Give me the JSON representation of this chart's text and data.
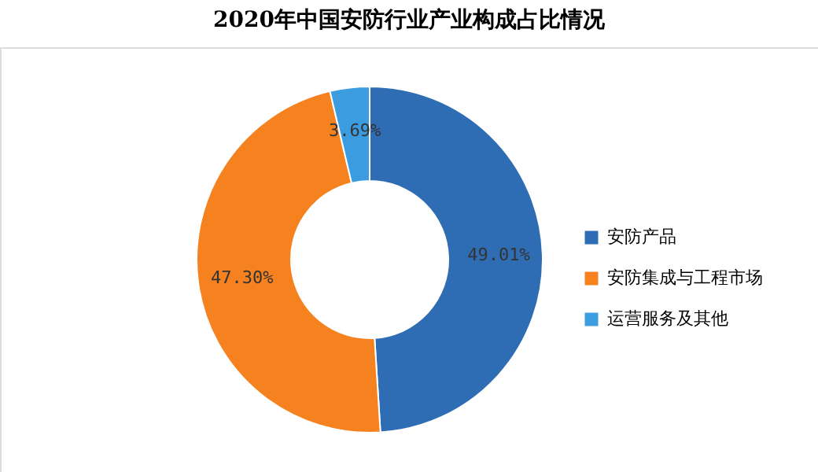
{
  "chart_data": {
    "type": "donut",
    "title": "2020年中国安防行业产业构成占比情况",
    "categories": [
      "安防产品",
      "安防集成与工程市场",
      "运营服务及其他"
    ],
    "values": [
      49.01,
      47.3,
      3.69
    ],
    "colors": [
      "#2e6db4",
      "#f5821f",
      "#3b9de0"
    ],
    "value_labels": [
      "49.01%",
      "47.30%",
      "3.69%"
    ],
    "legend": "right"
  }
}
